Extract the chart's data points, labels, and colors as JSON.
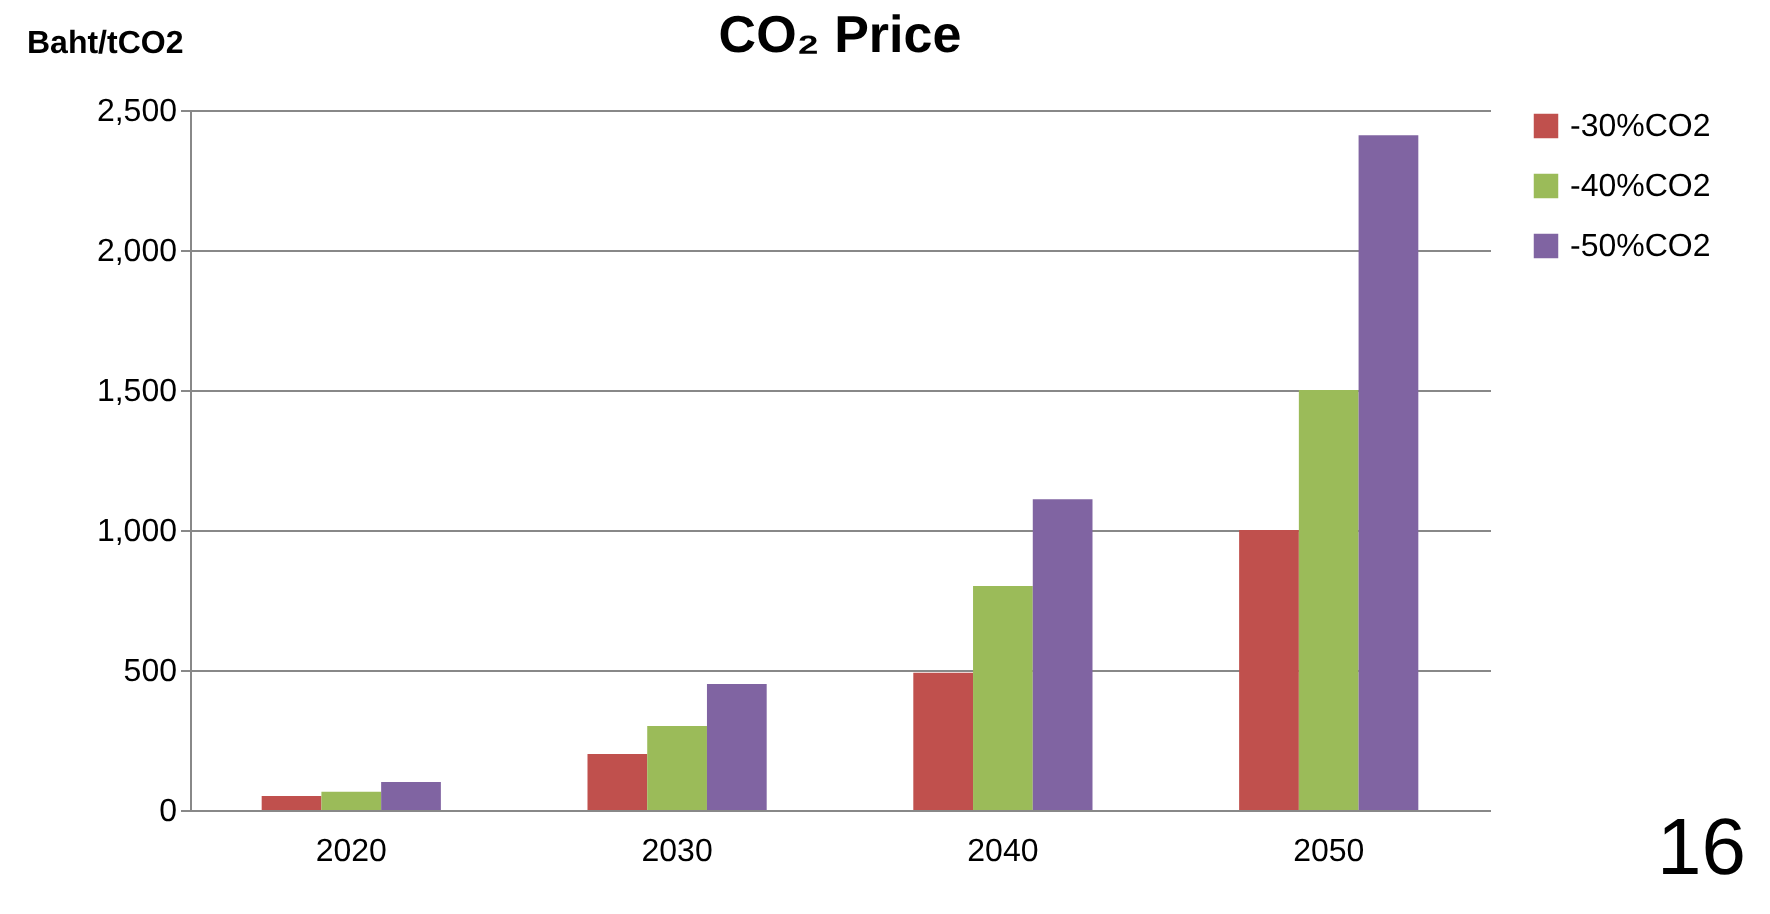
{
  "chart_data": {
    "type": "bar",
    "title": "CO₂ Price",
    "ylabel": "Baht/tCO2",
    "categories": [
      "2020",
      "2030",
      "2040",
      "2050"
    ],
    "series": [
      {
        "name": "-30%CO2",
        "color": "#c0504d",
        "values": [
          50,
          200,
          490,
          1000
        ]
      },
      {
        "name": "-40%CO2",
        "color": "#9bbb59",
        "values": [
          65,
          300,
          800,
          1500
        ]
      },
      {
        "name": "-50%CO2",
        "color": "#8064a2",
        "values": [
          100,
          450,
          1110,
          2410
        ]
      }
    ],
    "ylim": [
      0,
      2500
    ],
    "yticks": [
      0,
      500,
      {
        "value": 1000,
        "label": "1,000"
      },
      {
        "value": 1500,
        "label": "1,500"
      },
      {
        "value": 2000,
        "label": "2,000"
      },
      {
        "value": 2500,
        "label": "2,500"
      }
    ],
    "grid": "y",
    "legend": "right",
    "annotations": [
      "16"
    ]
  }
}
